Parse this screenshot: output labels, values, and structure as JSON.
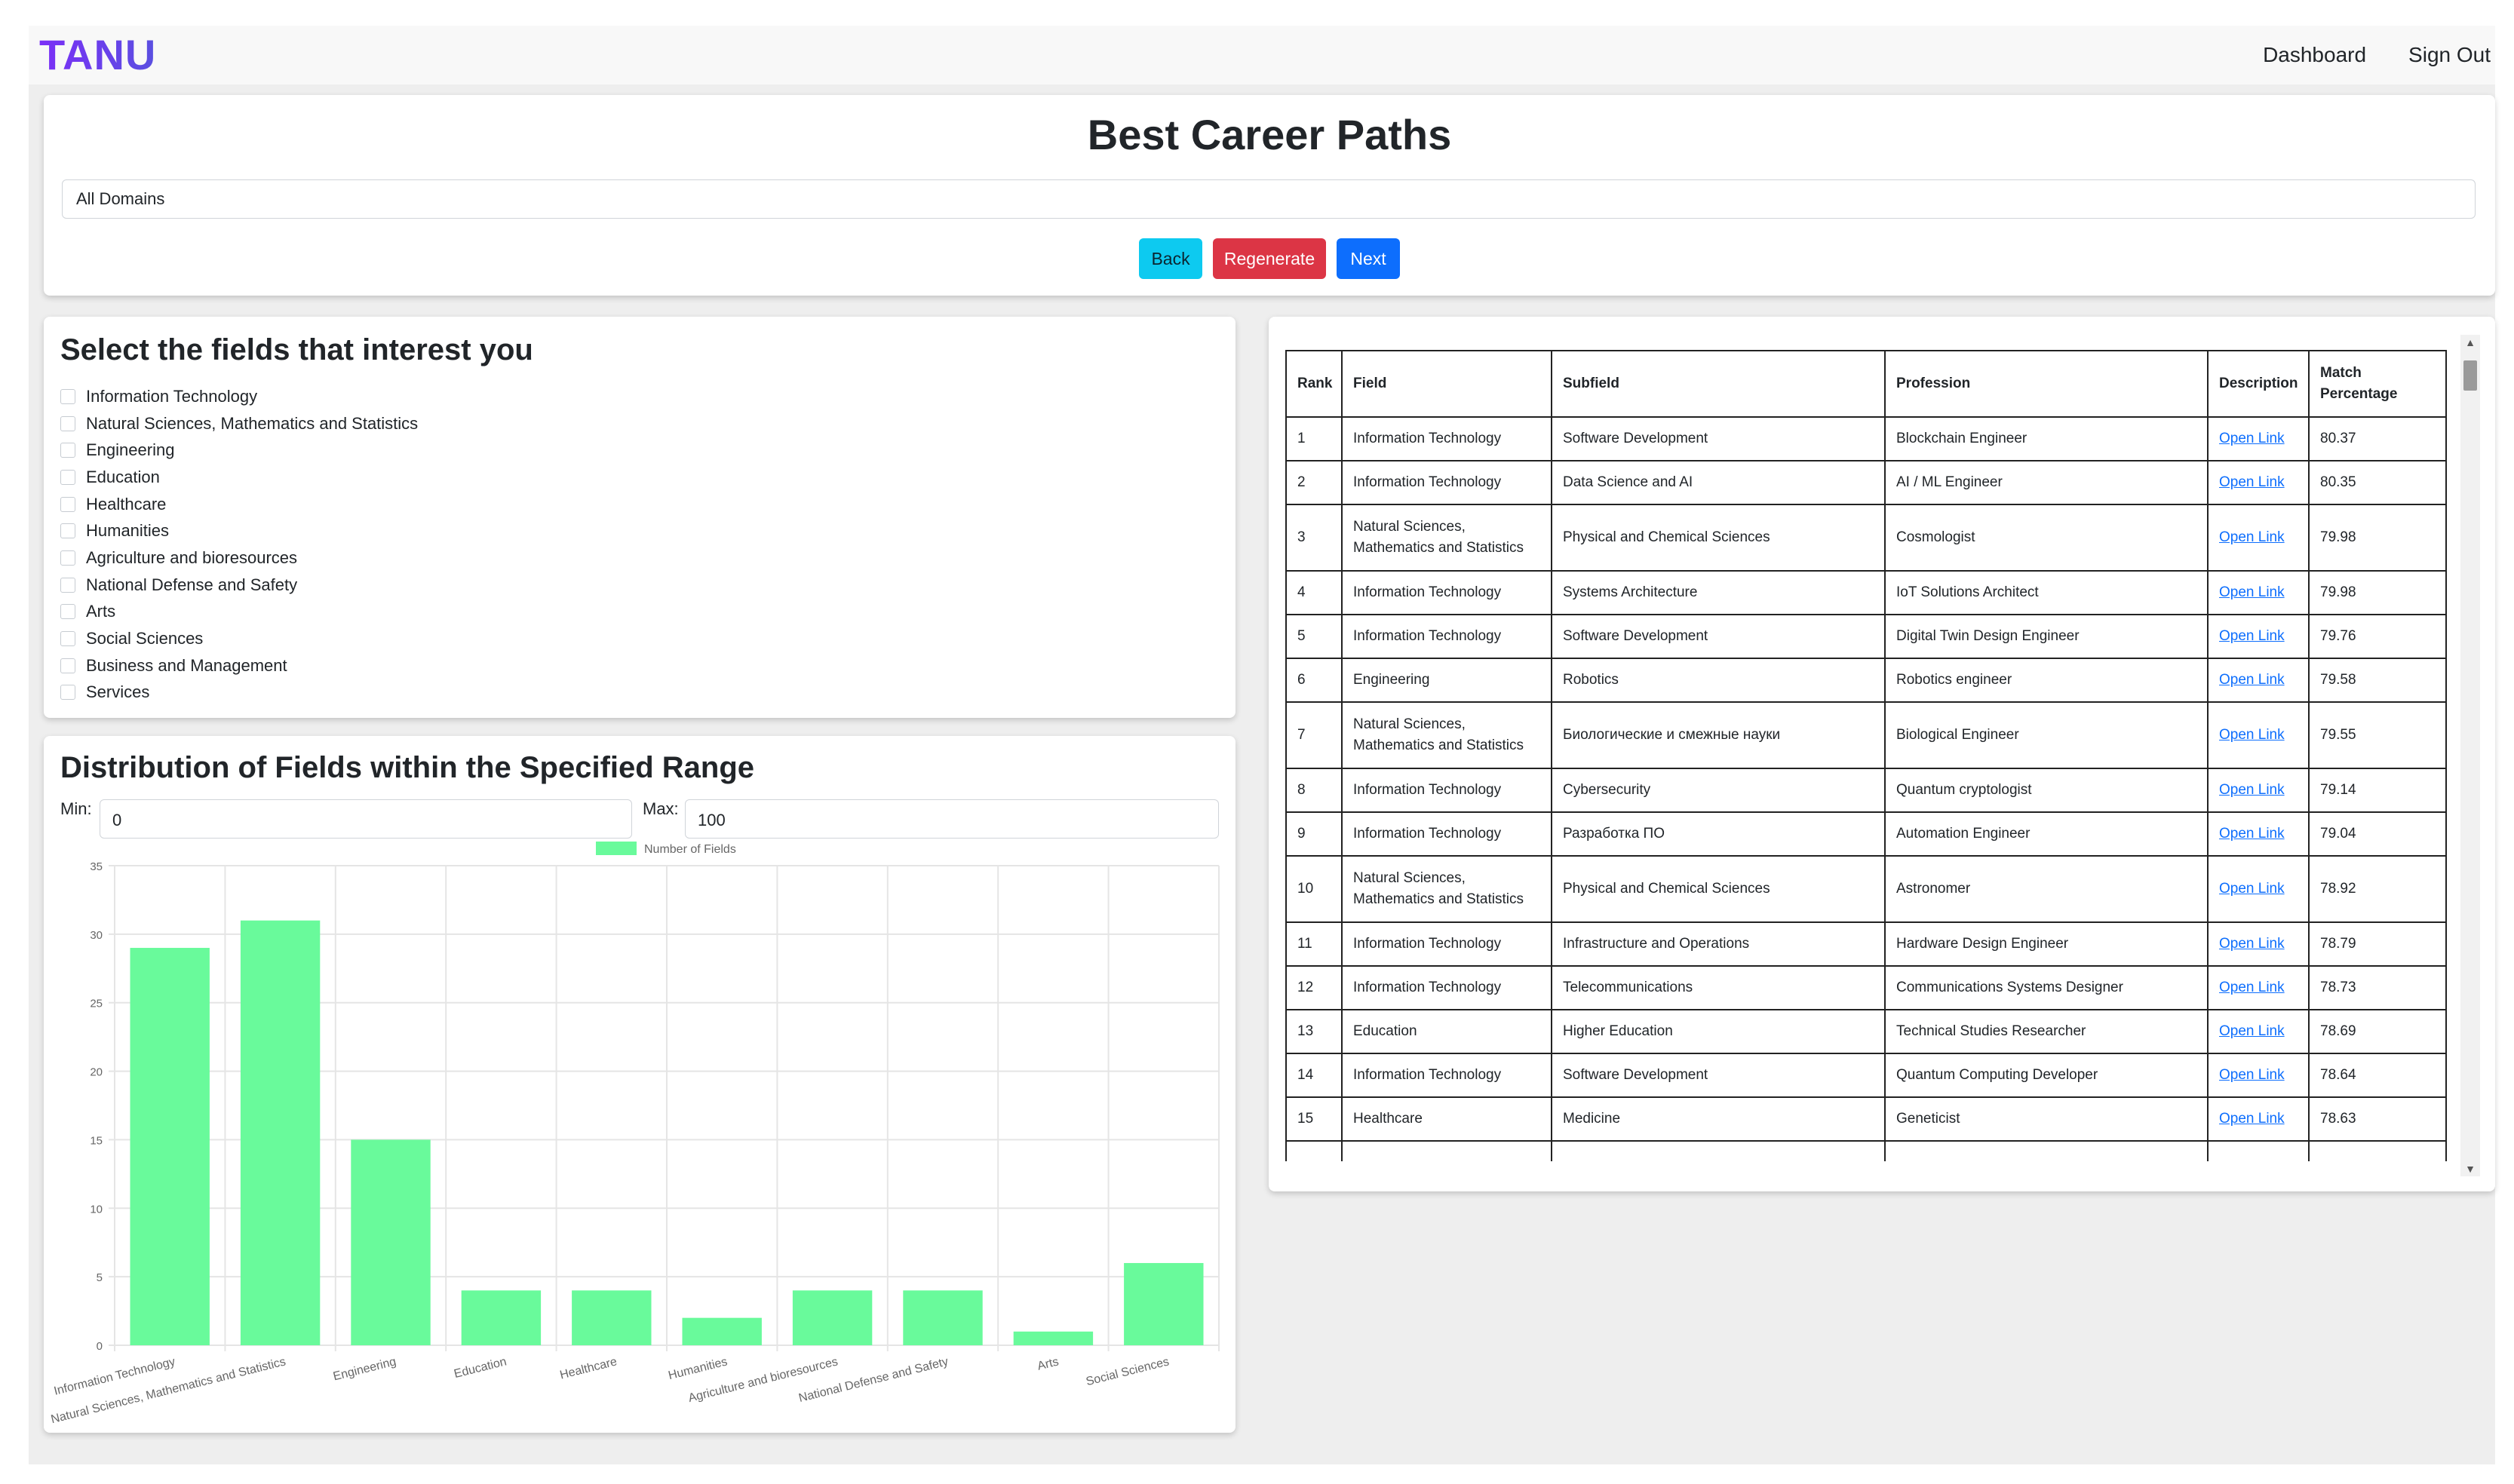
{
  "navbar": {
    "brand": "TANU",
    "links": [
      "Dashboard",
      "Sign Out"
    ]
  },
  "header": {
    "title": "Best Career Paths",
    "domain_select": "All Domains",
    "buttons": {
      "back": "Back",
      "regenerate": "Regenerate",
      "next": "Next"
    }
  },
  "fields": {
    "heading": "Select the fields that interest you",
    "items": [
      "Information Technology",
      "Natural Sciences, Mathematics and Statistics",
      "Engineering",
      "Education",
      "Healthcare",
      "Humanities",
      "Agriculture and bioresources",
      "National Defense and Safety",
      "Arts",
      "Social Sciences",
      "Business and Management",
      "Services"
    ]
  },
  "distribution": {
    "heading": "Distribution of Fields within the Specified Range",
    "min_label": "Min:",
    "min_value": "0",
    "max_label": "Max:",
    "max_value": "100"
  },
  "chart_data": {
    "type": "bar",
    "categories": [
      "Information Technology",
      "Natural Sciences, Mathematics and Statistics",
      "Engineering",
      "Education",
      "Healthcare",
      "Humanities",
      "Agriculture and bioresources",
      "National Defense and Safety",
      "Arts",
      "Social Sciences"
    ],
    "series": [
      {
        "name": "Number of Fields",
        "values": [
          29,
          31,
          15,
          4,
          4,
          2,
          4,
          4,
          1,
          6
        ]
      }
    ],
    "ylim": [
      0,
      35
    ],
    "yticks": [
      0,
      5,
      10,
      15,
      20,
      25,
      30,
      35
    ],
    "legend": "top",
    "grid": true,
    "colors": {
      "bar": "#69fa9b",
      "legend_swatch": "#69fa9b",
      "grid": "#e5e5e5"
    }
  },
  "table": {
    "columns": [
      "Rank",
      "Field",
      "Subfield",
      "Profession",
      "Description",
      "Match Percentage"
    ],
    "link_text": "Open Link",
    "rows": [
      [
        "1",
        "Information Technology",
        "Software Development",
        "Blockchain Engineer",
        "80.37"
      ],
      [
        "2",
        "Information Technology",
        "Data Science and AI",
        "AI / ML Engineer",
        "80.35"
      ],
      [
        "3",
        "Natural Sciences, Mathematics and Statistics",
        "Physical and Chemical Sciences",
        "Cosmologist",
        "79.98"
      ],
      [
        "4",
        "Information Technology",
        "Systems Architecture",
        "IoT Solutions Architect",
        "79.98"
      ],
      [
        "5",
        "Information Technology",
        "Software Development",
        "Digital Twin Design Engineer",
        "79.76"
      ],
      [
        "6",
        "Engineering",
        "Robotics",
        "Robotics engineer",
        "79.58"
      ],
      [
        "7",
        "Natural Sciences, Mathematics and Statistics",
        "Биологические и смежные науки",
        "Biological Engineer",
        "79.55"
      ],
      [
        "8",
        "Information Technology",
        "Cybersecurity",
        "Quantum cryptologist",
        "79.14"
      ],
      [
        "9",
        "Information Technology",
        "Разработка ПО",
        "Automation Engineer",
        "79.04"
      ],
      [
        "10",
        "Natural Sciences, Mathematics and Statistics",
        "Physical and Chemical Sciences",
        "Astronomer",
        "78.92"
      ],
      [
        "11",
        "Information Technology",
        "Infrastructure and Operations",
        "Hardware Design Engineer",
        "78.79"
      ],
      [
        "12",
        "Information Technology",
        "Telecommunications",
        "Communications Systems Designer",
        "78.73"
      ],
      [
        "13",
        "Education",
        "Higher Education",
        "Technical Studies Researcher",
        "78.69"
      ],
      [
        "14",
        "Information Technology",
        "Software Development",
        "Quantum Computing Developer",
        "78.64"
      ],
      [
        "15",
        "Healthcare",
        "Medicine",
        "Geneticist",
        "78.63"
      ],
      [
        "",
        "",
        "",
        "",
        ""
      ]
    ]
  }
}
